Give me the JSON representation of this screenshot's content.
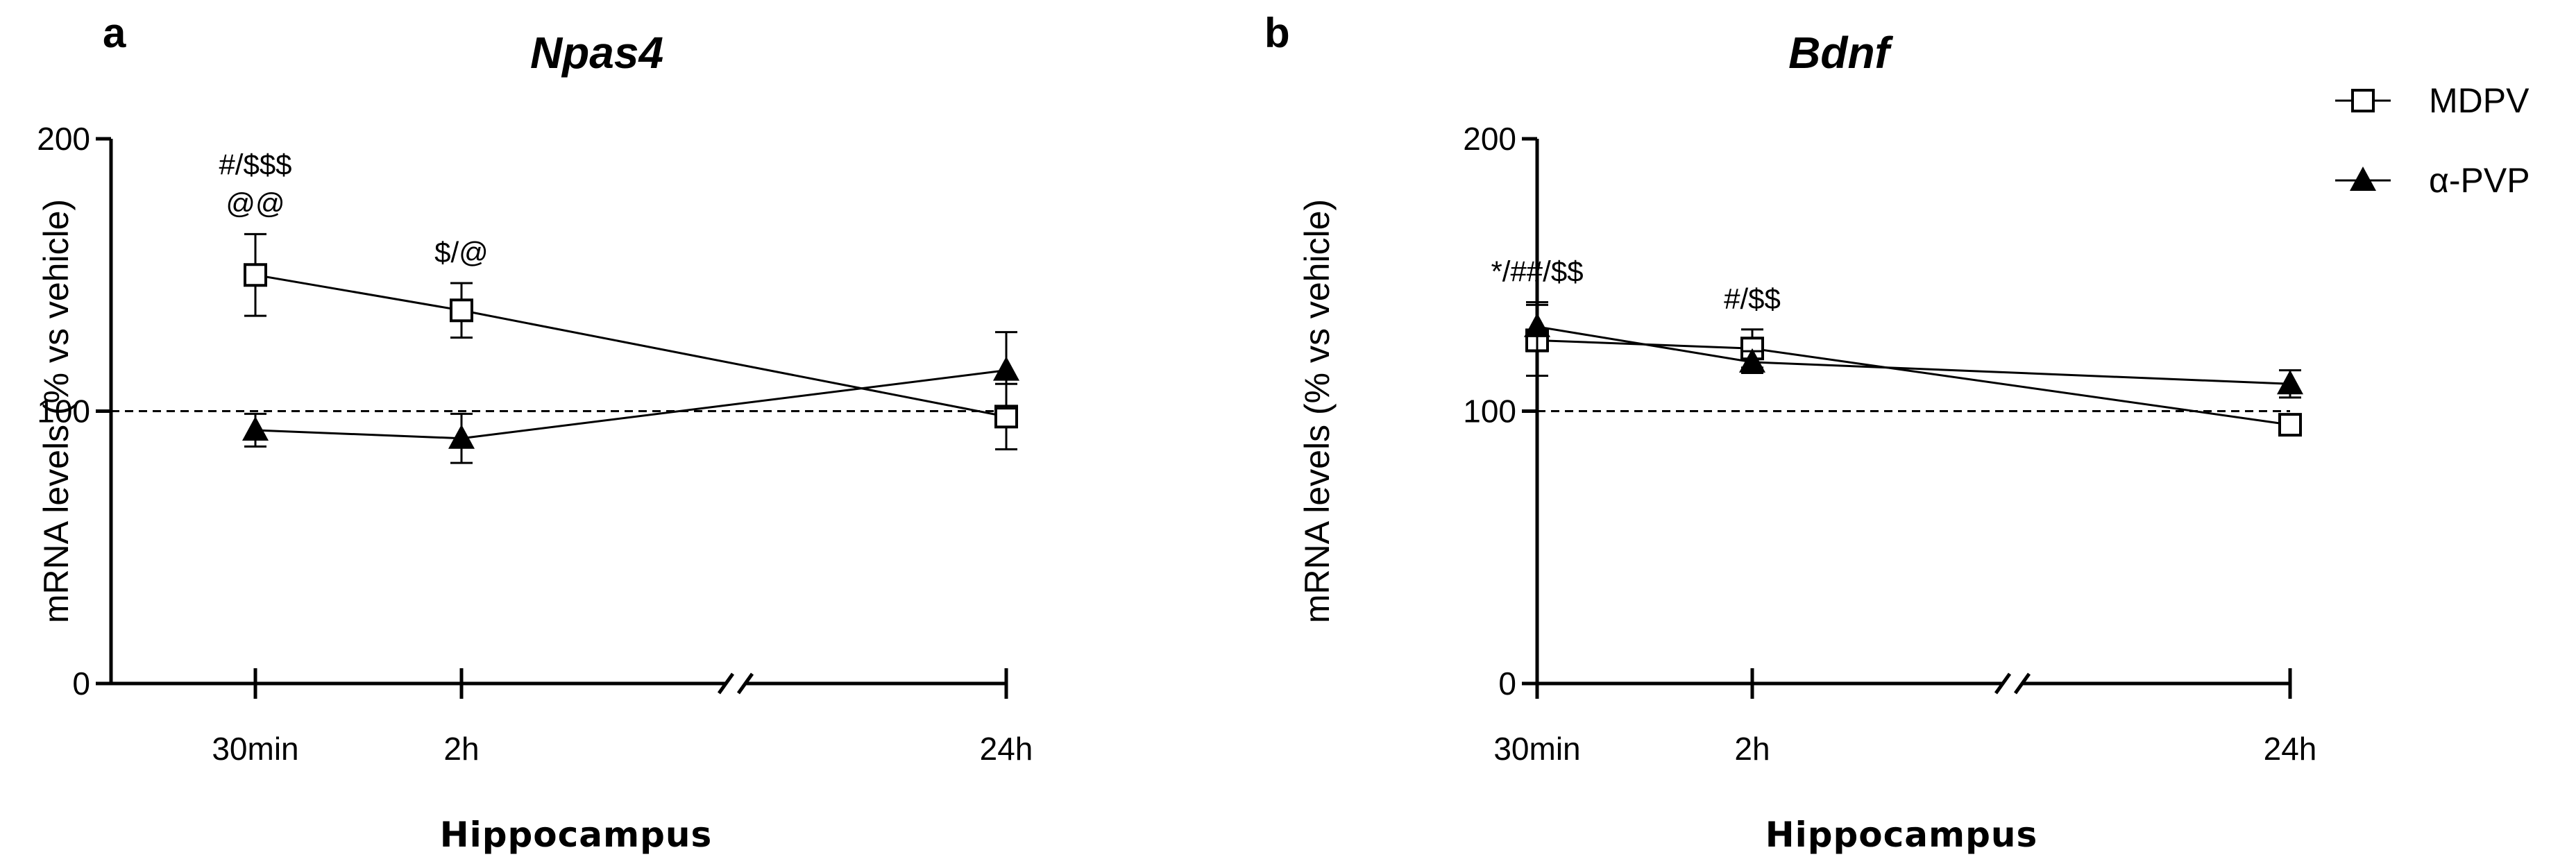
{
  "chart_data": [
    {
      "type": "line",
      "panel": "a",
      "title": "Npas4",
      "ylabel": "mRNA levels (% vs vehicle)",
      "xlabel": "Hippocampus",
      "ylim": [
        0,
        200
      ],
      "yticks": [
        0,
        100,
        200
      ],
      "categories": [
        "30min",
        "2h",
        "24h"
      ],
      "reference_line": 100,
      "axis_break": true,
      "series": [
        {
          "name": "MDPV",
          "marker": "open-square",
          "values": [
            150,
            137,
            98
          ],
          "errors": [
            15,
            10,
            12
          ]
        },
        {
          "name": "α-PVP",
          "marker": "filled-triangle",
          "values": [
            93,
            90,
            115
          ],
          "errors": [
            6,
            9,
            14
          ]
        }
      ],
      "annotations": [
        {
          "category": "30min",
          "lines": [
            "#/$$$",
            "@@"
          ]
        },
        {
          "category": "2h",
          "lines": [
            "$/@"
          ]
        }
      ]
    },
    {
      "type": "line",
      "panel": "b",
      "title": "Bdnf",
      "ylabel": "mRNA levels (% vs vehicle)",
      "xlabel": "Hippocampus",
      "ylim": [
        0,
        200
      ],
      "yticks": [
        0,
        100,
        200
      ],
      "categories": [
        "30min",
        "2h",
        "24h"
      ],
      "reference_line": 100,
      "axis_break": true,
      "series": [
        {
          "name": "MDPV",
          "marker": "open-square",
          "values": [
            126,
            123,
            95
          ],
          "errors": [
            13,
            7,
            3
          ]
        },
        {
          "name": "α-PVP",
          "marker": "filled-triangle",
          "values": [
            131,
            118,
            110
          ],
          "errors": [
            9,
            4,
            5
          ]
        }
      ],
      "annotations": [
        {
          "category": "30min",
          "lines": [
            "*/##/$$"
          ]
        },
        {
          "category": "2h",
          "lines": [
            "#/$$"
          ]
        }
      ]
    }
  ],
  "legend": {
    "position": "top-right",
    "items": [
      {
        "label": "MDPV",
        "marker": "open-square"
      },
      {
        "label": "α-PVP",
        "marker": "filled-triangle"
      }
    ]
  }
}
